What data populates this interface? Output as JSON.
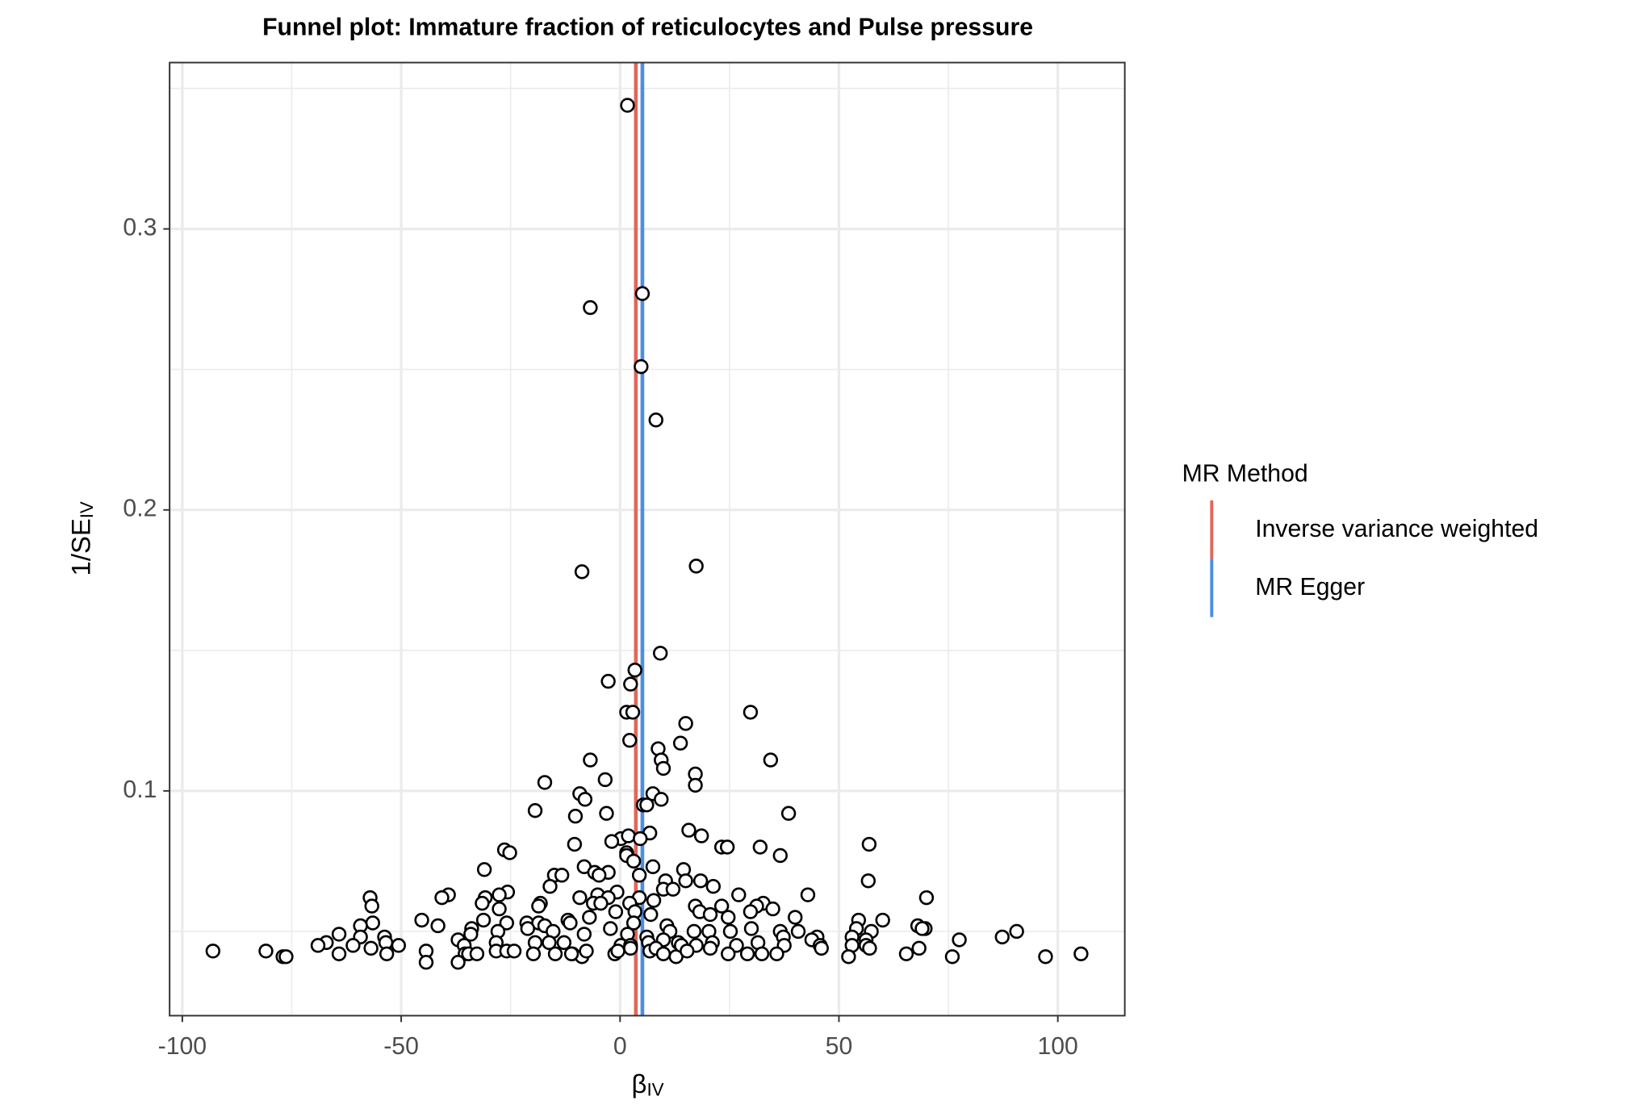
{
  "chart_data": {
    "type": "scatter",
    "title": "Funnel plot: Immature fraction of reticulocytes and Pulse pressure",
    "xlabel": {
      "text": "β",
      "subscript": "IV"
    },
    "ylabel": {
      "text": "1/SE",
      "subscript": "IV"
    },
    "xlim": [
      -102.9,
      115.3
    ],
    "ylim": [
      0.02,
      0.3592
    ],
    "xticks": [
      -100,
      -50,
      0,
      50,
      100
    ],
    "yticks": [
      0.1,
      0.2,
      0.3
    ],
    "xminor": [
      -75,
      -25,
      25,
      75
    ],
    "yminor": [
      0.05,
      0.15,
      0.25,
      0.35
    ],
    "grid": true,
    "point_color": "#000000",
    "legend_title": "MR Method",
    "legend_position": "right",
    "lines": [
      {
        "name": "Inverse variance weighted",
        "color": "#e0675a",
        "value": 3.6
      },
      {
        "name": "MR Egger",
        "color": "#4a8ee6",
        "value": 5.1
      }
    ],
    "x": [
      1.7,
      5.1,
      -6.8,
      4.8,
      8.2,
      -8.7,
      17.4,
      9.2,
      3.4,
      -2.7,
      2.4,
      1.5,
      2.9,
      29.8,
      15.0,
      2.2,
      13.8,
      8.7,
      -6.8,
      9.4,
      34.4,
      9.9,
      17.2,
      -3.4,
      -17.2,
      17.2,
      -9.2,
      7.5,
      -8.0,
      9.4,
      5.3,
      6.1,
      -19.4,
      -10.2,
      -3.1,
      38.5,
      15.7,
      6.8,
      18.6,
      0.2,
      1.9,
      -1.9,
      4.6,
      -10.4,
      56.9,
      23.2,
      24.5,
      32.0,
      -26.4,
      -25.2,
      1.5,
      36.6,
      1.5,
      3.1,
      -8.2,
      7.5,
      -31.0,
      14.5,
      -5.8,
      -2.7,
      4.4,
      -15.0,
      -13.3,
      -4.8,
      10.4,
      56.7,
      15.0,
      18.4,
      21.3,
      -16.0,
      9.9,
      12.1,
      -0.7,
      27.1,
      42.9,
      -39.2,
      -40.7,
      -57.1,
      -25.7,
      -27.6,
      -30.8,
      70.0,
      -9.2,
      -5.1,
      -2.7,
      4.4,
      7.7,
      -18.2,
      -56.7,
      -31.5,
      -27.6,
      -18.6,
      -6.1,
      -4.4,
      2.2,
      17.2,
      32.7,
      34.9,
      23.2,
      31.2,
      29.8,
      18.2,
      -1.0,
      7.0,
      3.4,
      20.6,
      24.7,
      40.0,
      60.0,
      54.5,
      -45.3,
      -56.5,
      -31.2,
      -25.9,
      -21.3,
      -18.6,
      -11.9,
      -7.0,
      3.1,
      -59.3,
      -41.6,
      -33.9,
      -21.1,
      -17.2,
      -11.4,
      68.0,
      69.7,
      54.0,
      69.0,
      -2.2,
      10.7,
      16.9,
      20.3,
      30.0,
      25.2,
      36.6,
      40.7,
      57.4,
      90.6,
      87.3,
      77.5,
      -64.2,
      -59.3,
      -53.8,
      -37.0,
      -34.1,
      -27.9,
      -15.3,
      -8.2,
      1.7,
      6.1,
      11.4,
      37.3,
      45.0,
      53.0,
      56.2,
      -53.5,
      -67.1,
      -69.0,
      -61.0,
      -50.6,
      -35.6,
      -28.3,
      -19.4,
      -16.2,
      -12.8,
      0.2,
      2.4,
      6.5,
      9.9,
      13.3,
      17.4,
      21.1,
      26.6,
      31.5,
      37.5,
      43.8,
      45.7,
      53.0,
      56.2,
      57.0,
      68.3,
      -93.0,
      -80.9,
      -77.0,
      -76.3,
      -64.2,
      -56.9,
      -53.3,
      -44.3,
      -44.3,
      -35.4,
      -37.0,
      -34.6,
      -32.7,
      -28.3,
      -25.9,
      -24.2,
      -19.8,
      -14.8,
      -10.9,
      -8.7,
      -7.7,
      -1.2,
      -0.5,
      2.4,
      6.8,
      8.2,
      9.9,
      12.8,
      14.0,
      15.3,
      20.6,
      24.7,
      29.1,
      32.4,
      35.8,
      46.0,
      52.2,
      65.4,
      75.9,
      97.2,
      105.3,
      -11.1
    ],
    "values": [
      0.344,
      0.277,
      0.272,
      0.251,
      0.232,
      0.178,
      0.18,
      0.149,
      0.143,
      0.139,
      0.138,
      0.128,
      0.128,
      0.128,
      0.124,
      0.118,
      0.117,
      0.115,
      0.111,
      0.111,
      0.111,
      0.108,
      0.106,
      0.104,
      0.103,
      0.102,
      0.099,
      0.099,
      0.097,
      0.097,
      0.095,
      0.095,
      0.093,
      0.091,
      0.092,
      0.092,
      0.086,
      0.085,
      0.084,
      0.083,
      0.084,
      0.082,
      0.083,
      0.081,
      0.081,
      0.08,
      0.08,
      0.08,
      0.079,
      0.078,
      0.078,
      0.077,
      0.077,
      0.075,
      0.073,
      0.073,
      0.072,
      0.072,
      0.071,
      0.071,
      0.07,
      0.07,
      0.07,
      0.07,
      0.068,
      0.068,
      0.068,
      0.068,
      0.066,
      0.066,
      0.065,
      0.065,
      0.064,
      0.063,
      0.063,
      0.063,
      0.062,
      0.062,
      0.064,
      0.063,
      0.062,
      0.062,
      0.062,
      0.063,
      0.062,
      0.062,
      0.061,
      0.06,
      0.059,
      0.06,
      0.058,
      0.059,
      0.06,
      0.06,
      0.06,
      0.059,
      0.06,
      0.058,
      0.059,
      0.059,
      0.057,
      0.057,
      0.057,
      0.056,
      0.057,
      0.056,
      0.055,
      0.055,
      0.054,
      0.054,
      0.054,
      0.053,
      0.054,
      0.053,
      0.053,
      0.053,
      0.054,
      0.055,
      0.053,
      0.052,
      0.052,
      0.051,
      0.051,
      0.052,
      0.053,
      0.052,
      0.051,
      0.051,
      0.051,
      0.051,
      0.052,
      0.05,
      0.05,
      0.051,
      0.05,
      0.05,
      0.05,
      0.05,
      0.05,
      0.048,
      0.047,
      0.049,
      0.048,
      0.048,
      0.047,
      0.049,
      0.05,
      0.05,
      0.049,
      0.049,
      0.048,
      0.05,
      0.048,
      0.048,
      0.048,
      0.047,
      0.046,
      0.046,
      0.045,
      0.045,
      0.045,
      0.045,
      0.046,
      0.046,
      0.046,
      0.046,
      0.045,
      0.045,
      0.046,
      0.047,
      0.046,
      0.045,
      0.046,
      0.045,
      0.046,
      0.045,
      0.047,
      0.045,
      0.045,
      0.045,
      0.044,
      0.044,
      0.043,
      0.043,
      0.041,
      0.041,
      0.042,
      0.044,
      0.042,
      0.043,
      0.039,
      0.042,
      0.039,
      0.042,
      0.042,
      0.043,
      0.043,
      0.043,
      0.042,
      0.042,
      0.042,
      0.041,
      0.043,
      0.042,
      0.043,
      0.044,
      0.043,
      0.044,
      0.042,
      0.041,
      0.045,
      0.043,
      0.044,
      0.042,
      0.042,
      0.042,
      0.042,
      0.044,
      0.041,
      0.042,
      0.041,
      0.041,
      0.042,
      0.042
    ]
  }
}
